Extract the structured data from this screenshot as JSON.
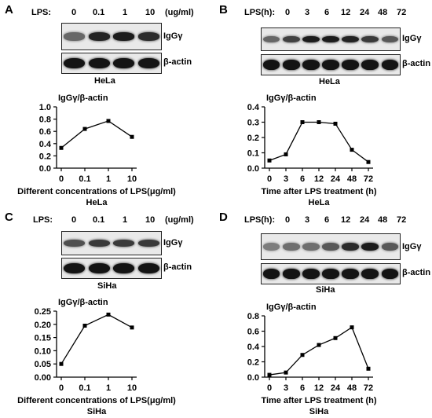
{
  "panels": [
    {
      "letter": "A",
      "lane_title": "LPS:",
      "unit": "(ug/ml)",
      "lanes": [
        "0",
        "0.1",
        "1",
        "10"
      ],
      "blot_targets": [
        "IgGγ",
        "β-actin"
      ],
      "cell_line": "HeLa",
      "band_intensity": {
        "igg": [
          0.45,
          0.9,
          0.95,
          0.85
        ],
        "actin": [
          1,
          1,
          1,
          1
        ]
      }
    },
    {
      "letter": "B",
      "lane_title": "LPS(h):",
      "unit": "",
      "lanes": [
        "0",
        "3",
        "6",
        "12",
        "24",
        "48",
        "72"
      ],
      "blot_targets": [
        "IgGγ",
        "β-actin"
      ],
      "cell_line": "HeLa",
      "band_intensity": {
        "igg": [
          0.45,
          0.7,
          0.95,
          0.95,
          0.9,
          0.75,
          0.55
        ],
        "actin": [
          1,
          1,
          1,
          1,
          1,
          1,
          1
        ]
      }
    },
    {
      "letter": "C",
      "lane_title": "LPS:",
      "unit": "(ug/ml)",
      "lanes": [
        "0",
        "0.1",
        "1",
        "10"
      ],
      "blot_targets": [
        "IgGγ",
        "β-actin"
      ],
      "cell_line": "SiHa",
      "band_intensity": {
        "igg": [
          0.6,
          0.75,
          0.75,
          0.75
        ],
        "actin": [
          1,
          1,
          1,
          1
        ]
      }
    },
    {
      "letter": "D",
      "lane_title": "LPS(h):",
      "unit": "",
      "lanes": [
        "0",
        "3",
        "6",
        "12",
        "24",
        "48",
        "72"
      ],
      "blot_targets": [
        "IgGγ",
        "β-actin"
      ],
      "cell_line": "SiHa",
      "band_intensity": {
        "igg": [
          0.3,
          0.4,
          0.4,
          0.55,
          0.85,
          0.95,
          0.55
        ],
        "actin": [
          1,
          1,
          1,
          1,
          1,
          1,
          1
        ]
      }
    }
  ],
  "chart_data": [
    {
      "type": "line",
      "title": "IgGγ/β-actin",
      "categories": [
        "0",
        "0.1",
        "1",
        "10"
      ],
      "values": [
        0.33,
        0.64,
        0.77,
        0.51
      ],
      "xlabel": "Different concentrations of LPS(μg/ml)",
      "sublabel": "HeLa",
      "ylim": [
        0,
        1.0
      ],
      "yticks": [
        "0.0",
        "0.2",
        "0.4",
        "0.6",
        "0.8",
        "1.0"
      ],
      "grid": false
    },
    {
      "type": "line",
      "title": "IgGγ/β-actin",
      "categories": [
        "0",
        "3",
        "6",
        "12",
        "24",
        "48",
        "72"
      ],
      "values": [
        0.05,
        0.09,
        0.3,
        0.3,
        0.29,
        0.12,
        0.04
      ],
      "xlabel": "Time after LPS treatment (h)",
      "sublabel": "HeLa",
      "ylim": [
        0,
        0.4
      ],
      "yticks": [
        "0.0",
        "0.1",
        "0.2",
        "0.3",
        "0.4"
      ],
      "grid": false
    },
    {
      "type": "line",
      "title": "IgGγ/β-actin",
      "categories": [
        "0",
        "0.1",
        "1",
        "10"
      ],
      "values": [
        0.05,
        0.195,
        0.237,
        0.188
      ],
      "xlabel": "Different concentrations of LPS(μg/ml)",
      "sublabel": "SiHa",
      "ylim": [
        0,
        0.25
      ],
      "yticks": [
        "0.00",
        "0.05",
        "0.10",
        "0.15",
        "0.20",
        "0.25"
      ],
      "grid": false
    },
    {
      "type": "line",
      "title": "IgGγ/β-actin",
      "categories": [
        "0",
        "3",
        "6",
        "12",
        "24",
        "48",
        "72"
      ],
      "values": [
        0.03,
        0.06,
        0.29,
        0.42,
        0.51,
        0.65,
        0.11
      ],
      "xlabel": "Time after LPS treatment (h)",
      "sublabel": "SiHa",
      "ylim": [
        0,
        0.8
      ],
      "yticks": [
        "0.0",
        "0.2",
        "0.4",
        "0.6",
        "0.8"
      ],
      "grid": false
    }
  ]
}
